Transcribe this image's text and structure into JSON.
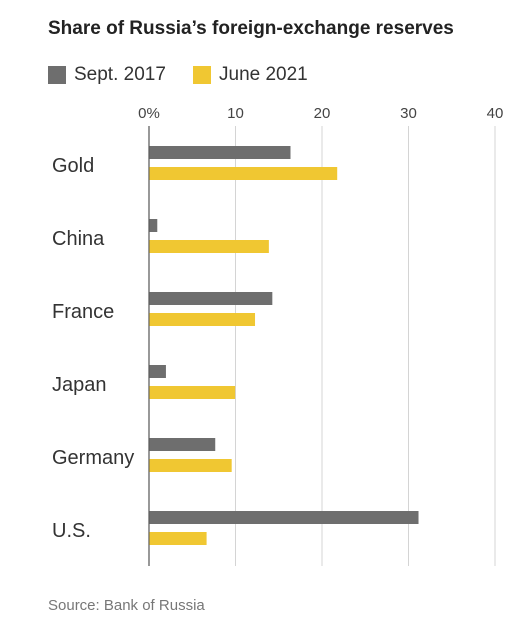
{
  "chart_data": {
    "type": "bar",
    "orientation": "horizontal",
    "title": "Share of Russia’s foreign-exchange reserves",
    "categories": [
      "Gold",
      "China",
      "France",
      "Japan",
      "Germany",
      "U.S."
    ],
    "series": [
      {
        "name": "Sept. 2017",
        "color": "#6e6e6e",
        "values": [
          16.3,
          0.9,
          14.2,
          1.9,
          7.6,
          31.1
        ]
      },
      {
        "name": "June 2021",
        "color": "#f0c732",
        "values": [
          21.7,
          13.8,
          12.2,
          9.9,
          9.5,
          6.6
        ]
      }
    ],
    "xlim": [
      0,
      40
    ],
    "xticks": [
      0,
      10,
      20,
      30,
      40
    ],
    "xtick_labels": [
      "0%",
      "10",
      "20",
      "30",
      "40"
    ],
    "grid": true,
    "legend_placement": "top-left",
    "source": "Source: Bank of Russia"
  }
}
